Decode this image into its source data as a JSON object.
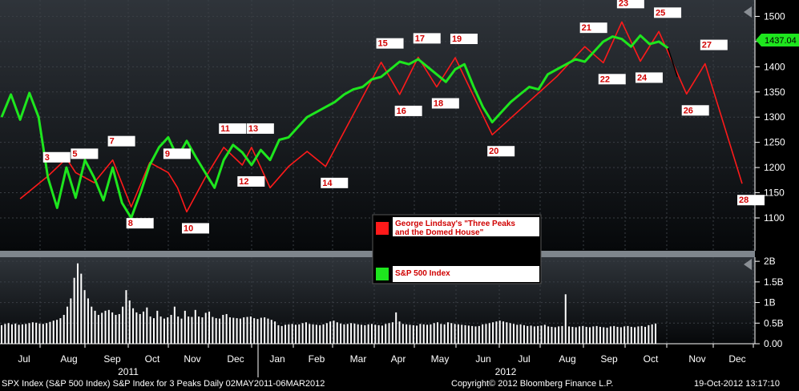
{
  "chart_data": {
    "type": "line",
    "x_axis": {
      "months": [
        "Jul",
        "Aug",
        "Sep",
        "Oct",
        "Nov",
        "Dec",
        "Jan",
        "Feb",
        "Mar",
        "Apr",
        "May",
        "Jun",
        "Jul",
        "Aug",
        "Sep",
        "Oct",
        "Nov",
        "Dec"
      ],
      "years": [
        "2011",
        "2012"
      ]
    },
    "price_axis": {
      "ylim": [
        1065,
        1515
      ],
      "ticks": [
        1100,
        1150,
        1200,
        1250,
        1300,
        1350,
        1400,
        1450,
        1500
      ]
    },
    "volume_axis": {
      "ylim": [
        0,
        2100000000
      ],
      "tick_labels": [
        "2B",
        "1.5B",
        "1B",
        "0.5B",
        "0.00"
      ],
      "tick_values": [
        2000000000,
        1500000000,
        1000000000,
        500000000,
        0
      ]
    },
    "last_price_label": "1437.04",
    "series": [
      {
        "name": "George Lindsay's \"Three Peaks and the Domed House\"",
        "color": "#ff1a1a",
        "points": [
          [
            2,
            1138
          ],
          [
            5,
            1183
          ],
          [
            7,
            1218
          ],
          [
            8,
            1190
          ],
          [
            10,
            1170
          ],
          [
            12,
            1215
          ],
          [
            14,
            1122
          ],
          [
            16,
            1210
          ],
          [
            18,
            1190
          ],
          [
            19,
            1160
          ],
          [
            20,
            1112
          ],
          [
            22,
            1180
          ],
          [
            24,
            1240
          ],
          [
            26,
            1205
          ],
          [
            27,
            1240
          ],
          [
            29,
            1160
          ],
          [
            31,
            1202
          ],
          [
            33,
            1232
          ],
          [
            35,
            1202
          ],
          [
            41,
            1409
          ],
          [
            43,
            1345
          ],
          [
            45,
            1419
          ],
          [
            47,
            1360
          ],
          [
            49,
            1418
          ],
          [
            53,
            1265
          ],
          [
            60,
            1381
          ],
          [
            63,
            1440
          ],
          [
            65,
            1408
          ],
          [
            67,
            1489
          ],
          [
            69,
            1411
          ],
          [
            71,
            1470
          ],
          [
            74,
            1346
          ],
          [
            76,
            1406
          ],
          [
            80,
            1168
          ]
        ],
        "markers": [
          {
            "label": "3",
            "x": 5,
            "y": 1183
          },
          {
            "label": "5",
            "x": 8,
            "y": 1190
          },
          {
            "label": "7",
            "x": 12,
            "y": 1215
          },
          {
            "label": "8",
            "x": 14,
            "y": 1122
          },
          {
            "label": "9",
            "x": 18,
            "y": 1190
          },
          {
            "label": "10",
            "x": 20,
            "y": 1112
          },
          {
            "label": "11",
            "x": 24,
            "y": 1240
          },
          {
            "label": "12",
            "x": 26,
            "y": 1205
          },
          {
            "label": "13",
            "x": 27,
            "y": 1240
          },
          {
            "label": "14",
            "x": 35,
            "y": 1202
          },
          {
            "label": "15",
            "x": 41,
            "y": 1409
          },
          {
            "label": "16",
            "x": 43,
            "y": 1345
          },
          {
            "label": "17",
            "x": 45,
            "y": 1419
          },
          {
            "label": "18",
            "x": 47,
            "y": 1360
          },
          {
            "label": "19",
            "x": 49,
            "y": 1418
          },
          {
            "label": "20",
            "x": 53,
            "y": 1265
          },
          {
            "label": "21",
            "x": 63,
            "y": 1440
          },
          {
            "label": "22",
            "x": 65,
            "y": 1408
          },
          {
            "label": "23",
            "x": 67,
            "y": 1489
          },
          {
            "label": "24",
            "x": 69,
            "y": 1411
          },
          {
            "label": "25",
            "x": 71,
            "y": 1470
          },
          {
            "label": "26",
            "x": 74,
            "y": 1346
          },
          {
            "label": "27",
            "x": 76,
            "y": 1406
          },
          {
            "label": "28",
            "x": 80,
            "y": 1168
          }
        ]
      },
      {
        "name": "S&P 500 Index",
        "color": "#1ee61e",
        "points": [
          [
            0,
            1300
          ],
          [
            1,
            1345
          ],
          [
            2,
            1295
          ],
          [
            3,
            1348
          ],
          [
            4,
            1300
          ],
          [
            5,
            1180
          ],
          [
            6,
            1120
          ],
          [
            7,
            1200
          ],
          [
            8,
            1140
          ],
          [
            9,
            1215
          ],
          [
            10,
            1180
          ],
          [
            11,
            1135
          ],
          [
            12,
            1200
          ],
          [
            13,
            1130
          ],
          [
            14,
            1100
          ],
          [
            15,
            1150
          ],
          [
            16,
            1205
          ],
          [
            17,
            1240
          ],
          [
            18,
            1260
          ],
          [
            19,
            1220
          ],
          [
            20,
            1253
          ],
          [
            21,
            1220
          ],
          [
            22,
            1190
          ],
          [
            23,
            1160
          ],
          [
            24,
            1215
          ],
          [
            25,
            1245
          ],
          [
            26,
            1230
          ],
          [
            27,
            1205
          ],
          [
            28,
            1235
          ],
          [
            29,
            1215
          ],
          [
            30,
            1255
          ],
          [
            31,
            1260
          ],
          [
            32,
            1280
          ],
          [
            33,
            1300
          ],
          [
            34,
            1310
          ],
          [
            35,
            1320
          ],
          [
            36,
            1330
          ],
          [
            37,
            1345
          ],
          [
            38,
            1355
          ],
          [
            39,
            1360
          ],
          [
            40,
            1375
          ],
          [
            41,
            1380
          ],
          [
            42,
            1395
          ],
          [
            43,
            1410
          ],
          [
            44,
            1405
          ],
          [
            45,
            1415
          ],
          [
            46,
            1400
          ],
          [
            47,
            1385
          ],
          [
            48,
            1370
          ],
          [
            49,
            1395
          ],
          [
            50,
            1405
          ],
          [
            51,
            1360
          ],
          [
            52,
            1320
          ],
          [
            53,
            1290
          ],
          [
            54,
            1310
          ],
          [
            55,
            1330
          ],
          [
            56,
            1345
          ],
          [
            57,
            1360
          ],
          [
            58,
            1355
          ],
          [
            59,
            1385
          ],
          [
            60,
            1395
          ],
          [
            61,
            1405
          ],
          [
            62,
            1415
          ],
          [
            63,
            1410
          ],
          [
            64,
            1430
          ],
          [
            65,
            1450
          ],
          [
            66,
            1460
          ],
          [
            67,
            1455
          ],
          [
            68,
            1440
          ],
          [
            69,
            1462
          ],
          [
            70,
            1445
          ],
          [
            71,
            1450
          ],
          [
            72,
            1437
          ]
        ]
      },
      {
        "name": "",
        "color": "#000000",
        "points": [
          [
            72,
            1437
          ],
          [
            73,
            1380
          ]
        ]
      }
    ],
    "volume_series": {
      "name": "Volume",
      "color": "#ffffff",
      "values": [
        450000000,
        480000000,
        500000000,
        470000000,
        490000000,
        460000000,
        470000000,
        480000000,
        500000000,
        520000000,
        510000000,
        490000000,
        480000000,
        500000000,
        530000000,
        560000000,
        580000000,
        620000000,
        700000000,
        900000000,
        1100000000,
        1600000000,
        1950000000,
        1700000000,
        1300000000,
        1100000000,
        900000000,
        800000000,
        700000000,
        750000000,
        800000000,
        820000000,
        760000000,
        700000000,
        720000000,
        900000000,
        1300000000,
        1050000000,
        860000000,
        760000000,
        720000000,
        780000000,
        880000000,
        660000000,
        620000000,
        800000000,
        660000000,
        610000000,
        640000000,
        700000000,
        900000000,
        660000000,
        610000000,
        800000000,
        660000000,
        650000000,
        820000000,
        660000000,
        640000000,
        750000000,
        780000000,
        650000000,
        620000000,
        610000000,
        700000000,
        720000000,
        640000000,
        630000000,
        620000000,
        610000000,
        640000000,
        650000000,
        660000000,
        620000000,
        600000000,
        630000000,
        640000000,
        610000000,
        580000000,
        540000000,
        450000000,
        430000000,
        460000000,
        470000000,
        480000000,
        460000000,
        470000000,
        500000000,
        520000000,
        480000000,
        470000000,
        460000000,
        450000000,
        470000000,
        500000000,
        540000000,
        560000000,
        520000000,
        490000000,
        470000000,
        480000000,
        500000000,
        490000000,
        470000000,
        460000000,
        450000000,
        470000000,
        480000000,
        460000000,
        450000000,
        440000000,
        480000000,
        500000000,
        520000000,
        760000000,
        540000000,
        480000000,
        470000000,
        460000000,
        450000000,
        440000000,
        480000000,
        470000000,
        460000000,
        470000000,
        500000000,
        520000000,
        480000000,
        470000000,
        520000000,
        500000000,
        480000000,
        470000000,
        460000000,
        450000000,
        440000000,
        430000000,
        420000000,
        430000000,
        470000000,
        480000000,
        500000000,
        520000000,
        540000000,
        560000000,
        540000000,
        520000000,
        500000000,
        480000000,
        460000000,
        470000000,
        450000000,
        430000000,
        440000000,
        420000000,
        430000000,
        440000000,
        460000000,
        420000000,
        410000000,
        400000000,
        420000000,
        430000000,
        1200000000,
        420000000,
        410000000,
        400000000,
        420000000,
        430000000,
        410000000,
        400000000,
        420000000,
        430000000,
        410000000,
        400000000,
        390000000,
        420000000,
        430000000,
        410000000,
        400000000,
        420000000,
        430000000,
        410000000,
        400000000,
        420000000,
        430000000,
        410000000,
        450000000,
        470000000,
        490000000
      ]
    },
    "legend": [
      {
        "label": "George Lindsay's \"Three Peaks and the Domed House\"",
        "color": "#ff1a1a"
      },
      {
        "label": "S&P 500 Index",
        "color": "#1ee61e"
      }
    ],
    "footer": {
      "left": "SPX Index (S&P 500 Index) S&P Index for 3 Peaks  Daily 02MAY2011-06MAR2012",
      "center": "Copyright© 2012 Bloomberg Finance L.P.",
      "right": "19-Oct-2012 13:17:10"
    }
  }
}
